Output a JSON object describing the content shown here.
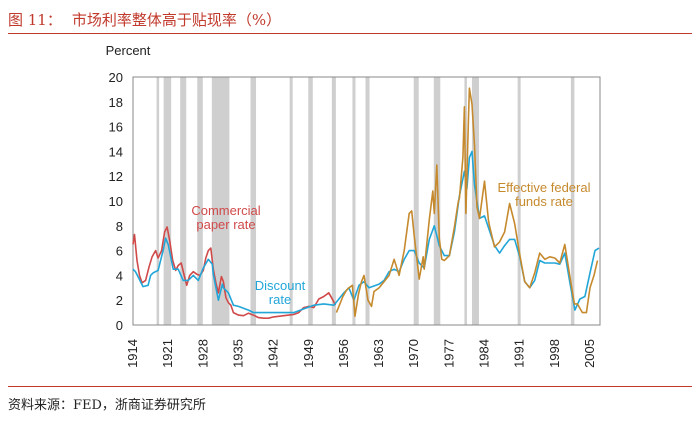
{
  "header": {
    "fig_no": "图 11：",
    "title": "市场利率整体高于贴现率（%）"
  },
  "source": "资料来源：FED，浙商证券研究所",
  "chart_data": {
    "type": "line",
    "ylabel": "Percent",
    "ylim": [
      0,
      20
    ],
    "xlim": [
      1914,
      2007
    ],
    "y_ticks": [
      0,
      2,
      4,
      6,
      8,
      10,
      12,
      14,
      16,
      18,
      20
    ],
    "x_ticks": [
      "1914",
      "1921",
      "1928",
      "1935",
      "1942",
      "1949",
      "1956",
      "1963",
      "1970",
      "1977",
      "1984",
      "1991",
      "1998",
      "2005"
    ],
    "grid": false,
    "recession_shading": true,
    "recessions": [
      [
        1918.7,
        1919.2
      ],
      [
        1920.1,
        1921.6
      ],
      [
        1923.4,
        1924.6
      ],
      [
        1926.8,
        1927.9
      ],
      [
        1929.7,
        1933.2
      ],
      [
        1937.4,
        1938.5
      ],
      [
        1945.2,
        1945.8
      ],
      [
        1948.9,
        1949.8
      ],
      [
        1953.6,
        1954.4
      ],
      [
        1957.7,
        1958.3
      ],
      [
        1960.3,
        1961.1
      ],
      [
        1969.9,
        1970.9
      ],
      [
        1973.9,
        1975.2
      ],
      [
        1980.0,
        1980.5
      ],
      [
        1981.5,
        1982.9
      ],
      [
        1990.6,
        1991.2
      ],
      [
        2001.2,
        2001.9
      ]
    ],
    "annotations": [
      {
        "text": "Commercial",
        "series": "Commercial paper rate"
      },
      {
        "text": "paper rate",
        "series": "Commercial paper rate"
      },
      {
        "text": "Discount",
        "series": "Discount rate"
      },
      {
        "text": "rate",
        "series": "Discount rate"
      },
      {
        "text": "Effective federal",
        "series": "Effective federal funds rate"
      },
      {
        "text": "funds rate",
        "series": "Effective federal funds rate"
      }
    ],
    "series": [
      {
        "name": "Commercial paper rate",
        "color": "#d04a4a",
        "points": [
          [
            1914,
            6.5
          ],
          [
            1914.3,
            7.3
          ],
          [
            1914.8,
            5.2
          ],
          [
            1915.3,
            4.0
          ],
          [
            1915.8,
            3.4
          ],
          [
            1916.5,
            3.6
          ],
          [
            1917.2,
            4.7
          ],
          [
            1917.8,
            5.5
          ],
          [
            1918.5,
            6.0
          ],
          [
            1919,
            5.4
          ],
          [
            1919.7,
            6.0
          ],
          [
            1920.3,
            7.5
          ],
          [
            1920.8,
            7.9
          ],
          [
            1921.3,
            6.8
          ],
          [
            1921.9,
            5.2
          ],
          [
            1922.5,
            4.4
          ],
          [
            1923,
            4.8
          ],
          [
            1923.6,
            5.0
          ],
          [
            1924.2,
            4.0
          ],
          [
            1924.7,
            3.2
          ],
          [
            1925.3,
            4.0
          ],
          [
            1926,
            4.3
          ],
          [
            1926.7,
            4.1
          ],
          [
            1927.3,
            4.0
          ],
          [
            1928,
            4.4
          ],
          [
            1928.5,
            5.4
          ],
          [
            1929,
            6.0
          ],
          [
            1929.5,
            6.2
          ],
          [
            1930,
            4.5
          ],
          [
            1930.5,
            3.4
          ],
          [
            1931,
            2.6
          ],
          [
            1931.6,
            3.9
          ],
          [
            1932,
            3.5
          ],
          [
            1932.5,
            2.2
          ],
          [
            1933,
            1.8
          ],
          [
            1933.5,
            1.6
          ],
          [
            1934,
            1.0
          ],
          [
            1935,
            0.8
          ],
          [
            1936,
            0.75
          ],
          [
            1937,
            0.95
          ],
          [
            1938,
            0.8
          ],
          [
            1939,
            0.6
          ],
          [
            1940,
            0.55
          ],
          [
            1941,
            0.55
          ],
          [
            1942,
            0.65
          ],
          [
            1943,
            0.7
          ],
          [
            1944,
            0.75
          ],
          [
            1945,
            0.8
          ],
          [
            1946,
            0.85
          ],
          [
            1947,
            1.0
          ],
          [
            1948,
            1.4
          ],
          [
            1949,
            1.5
          ],
          [
            1950,
            1.4
          ],
          [
            1951,
            2.1
          ],
          [
            1952,
            2.3
          ],
          [
            1953,
            2.6
          ],
          [
            1953.8,
            2.0
          ],
          [
            1954.3,
            1.6
          ]
        ]
      },
      {
        "name": "Discount rate",
        "color": "#22a6d8",
        "points": [
          [
            1914,
            4.5
          ],
          [
            1914.5,
            4.3
          ],
          [
            1915,
            3.9
          ],
          [
            1916,
            3.1
          ],
          [
            1917,
            3.2
          ],
          [
            1917.5,
            4.0
          ],
          [
            1918,
            4.2
          ],
          [
            1919,
            4.4
          ],
          [
            1920,
            6.0
          ],
          [
            1920.5,
            7.0
          ],
          [
            1921,
            6.5
          ],
          [
            1921.5,
            5.5
          ],
          [
            1922,
            4.5
          ],
          [
            1923,
            4.5
          ],
          [
            1924,
            3.6
          ],
          [
            1925,
            3.6
          ],
          [
            1926,
            4.0
          ],
          [
            1927,
            3.6
          ],
          [
            1928,
            4.6
          ],
          [
            1929,
            5.3
          ],
          [
            1929.8,
            4.9
          ],
          [
            1930,
            4.1
          ],
          [
            1931,
            2.0
          ],
          [
            1931.8,
            3.3
          ],
          [
            1932,
            3.0
          ],
          [
            1933,
            2.6
          ],
          [
            1934,
            1.6
          ],
          [
            1935,
            1.5
          ],
          [
            1937,
            1.2
          ],
          [
            1938,
            1.0
          ],
          [
            1942,
            1.0
          ],
          [
            1946,
            1.0
          ],
          [
            1948,
            1.3
          ],
          [
            1950,
            1.6
          ],
          [
            1952,
            1.7
          ],
          [
            1954,
            1.6
          ],
          [
            1956,
            2.6
          ],
          [
            1957,
            3.0
          ],
          [
            1958,
            2.0
          ],
          [
            1959,
            3.2
          ],
          [
            1960,
            3.5
          ],
          [
            1961,
            3.0
          ],
          [
            1963,
            3.3
          ],
          [
            1964,
            3.6
          ],
          [
            1965,
            4.3
          ],
          [
            1966,
            4.5
          ],
          [
            1967,
            4.3
          ],
          [
            1968,
            5.3
          ],
          [
            1969,
            6.0
          ],
          [
            1970,
            6.0
          ],
          [
            1971,
            5.0
          ],
          [
            1972,
            4.6
          ],
          [
            1973,
            6.9
          ],
          [
            1974,
            8.0
          ],
          [
            1975,
            6.4
          ],
          [
            1976,
            5.6
          ],
          [
            1977,
            5.6
          ],
          [
            1978,
            7.5
          ],
          [
            1979,
            10.4
          ],
          [
            1980,
            12.4
          ],
          [
            1980.5,
            11.0
          ],
          [
            1981,
            13.5
          ],
          [
            1981.5,
            14.0
          ],
          [
            1982,
            11.3
          ],
          [
            1983,
            8.6
          ],
          [
            1984,
            8.8
          ],
          [
            1985,
            7.6
          ],
          [
            1986,
            6.4
          ],
          [
            1987,
            5.8
          ],
          [
            1988,
            6.4
          ],
          [
            1989,
            6.9
          ],
          [
            1990,
            6.9
          ],
          [
            1991,
            5.5
          ],
          [
            1992,
            3.5
          ],
          [
            1993,
            3.0
          ],
          [
            1994,
            3.6
          ],
          [
            1995,
            5.2
          ],
          [
            1996,
            5.0
          ],
          [
            1998,
            5.0
          ],
          [
            1999,
            4.9
          ],
          [
            2000,
            5.8
          ],
          [
            2001,
            3.4
          ],
          [
            2002,
            1.2
          ],
          [
            2003,
            2.1
          ],
          [
            2004,
            2.3
          ],
          [
            2005,
            4.2
          ],
          [
            2006,
            6.0
          ],
          [
            2006.8,
            6.2
          ]
        ]
      },
      {
        "name": "Effective federal funds rate",
        "color": "#c68a2e",
        "points": [
          [
            1954.5,
            1.0
          ],
          [
            1955,
            1.5
          ],
          [
            1955.8,
            2.3
          ],
          [
            1956.5,
            2.8
          ],
          [
            1957,
            3.0
          ],
          [
            1957.7,
            3.2
          ],
          [
            1958.2,
            0.7
          ],
          [
            1958.9,
            2.5
          ],
          [
            1959.5,
            3.5
          ],
          [
            1960,
            4.0
          ],
          [
            1960.8,
            2.0
          ],
          [
            1961.5,
            1.5
          ],
          [
            1962,
            2.7
          ],
          [
            1963,
            3.0
          ],
          [
            1964,
            3.5
          ],
          [
            1965,
            4.0
          ],
          [
            1966,
            5.3
          ],
          [
            1967,
            4.0
          ],
          [
            1968,
            6.0
          ],
          [
            1969,
            9.0
          ],
          [
            1969.5,
            9.2
          ],
          [
            1970,
            7.2
          ],
          [
            1971,
            3.7
          ],
          [
            1971.8,
            5.5
          ],
          [
            1972,
            4.5
          ],
          [
            1973,
            8.5
          ],
          [
            1973.7,
            10.8
          ],
          [
            1974,
            9.0
          ],
          [
            1974.5,
            12.9
          ],
          [
            1975,
            7.0
          ],
          [
            1975.5,
            5.3
          ],
          [
            1976,
            5.2
          ],
          [
            1977,
            5.6
          ],
          [
            1978,
            7.9
          ],
          [
            1978.8,
            10.0
          ],
          [
            1979,
            10.2
          ],
          [
            1979.7,
            13.5
          ],
          [
            1980,
            17.6
          ],
          [
            1980.3,
            9.0
          ],
          [
            1980.8,
            16.5
          ],
          [
            1981,
            19.1
          ],
          [
            1981.5,
            17.8
          ],
          [
            1982,
            14.5
          ],
          [
            1982.5,
            9.5
          ],
          [
            1983,
            8.6
          ],
          [
            1984,
            11.6
          ],
          [
            1984.8,
            8.4
          ],
          [
            1985,
            8.0
          ],
          [
            1986,
            6.3
          ],
          [
            1987,
            6.7
          ],
          [
            1988,
            7.5
          ],
          [
            1989,
            9.8
          ],
          [
            1990,
            8.2
          ],
          [
            1991,
            5.7
          ],
          [
            1992,
            3.5
          ],
          [
            1993,
            3.0
          ],
          [
            1994,
            4.2
          ],
          [
            1995,
            5.8
          ],
          [
            1996,
            5.3
          ],
          [
            1997,
            5.5
          ],
          [
            1998,
            5.4
          ],
          [
            1999,
            5.0
          ],
          [
            2000,
            6.5
          ],
          [
            2001,
            3.9
          ],
          [
            2001.9,
            1.7
          ],
          [
            2002.5,
            1.7
          ],
          [
            2003.5,
            1.0
          ],
          [
            2004.3,
            1.0
          ],
          [
            2005,
            3.0
          ],
          [
            2005.8,
            4.0
          ],
          [
            2006.5,
            5.2
          ]
        ]
      }
    ]
  }
}
